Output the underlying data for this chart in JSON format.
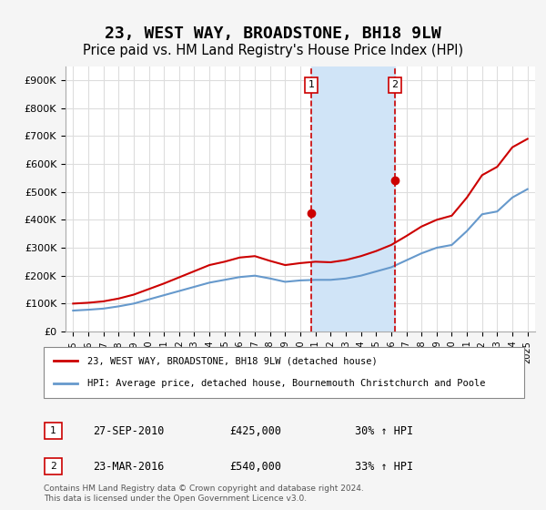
{
  "title": "23, WEST WAY, BROADSTONE, BH18 9LW",
  "subtitle": "Price paid vs. HM Land Registry's House Price Index (HPI)",
  "title_fontsize": 13,
  "subtitle_fontsize": 10.5,
  "ylim": [
    0,
    950000
  ],
  "yticks": [
    0,
    100000,
    200000,
    300000,
    400000,
    500000,
    600000,
    700000,
    800000,
    900000
  ],
  "ytick_labels": [
    "£0",
    "£100K",
    "£200K",
    "£300K",
    "£400K",
    "£500K",
    "£600K",
    "£700K",
    "£800K",
    "£900K"
  ],
  "xlim_start": 1994.5,
  "xlim_end": 2025.5,
  "xtick_years": [
    1995,
    1996,
    1997,
    1998,
    1999,
    2000,
    2001,
    2002,
    2003,
    2004,
    2005,
    2006,
    2007,
    2008,
    2009,
    2010,
    2011,
    2012,
    2013,
    2014,
    2015,
    2016,
    2017,
    2018,
    2019,
    2020,
    2021,
    2022,
    2023,
    2024,
    2025
  ],
  "purchase1_x": 2010.74,
  "purchase1_y": 425000,
  "purchase1_label": "1",
  "purchase2_x": 2016.23,
  "purchase2_y": 540000,
  "purchase2_label": "2",
  "shade_start": 2010.74,
  "shade_end": 2016.23,
  "shade_color": "#d0e4f7",
  "vline_color": "#cc0000",
  "vline_style": "--",
  "legend_line1_color": "#cc0000",
  "legend_line2_color": "#6699cc",
  "legend1_label": "23, WEST WAY, BROADSTONE, BH18 9LW (detached house)",
  "legend2_label": "HPI: Average price, detached house, Bournemouth Christchurch and Poole",
  "annotation1_date": "27-SEP-2010",
  "annotation1_price": "£425,000",
  "annotation1_hpi": "30% ↑ HPI",
  "annotation2_date": "23-MAR-2016",
  "annotation2_price": "£540,000",
  "annotation2_hpi": "33% ↑ HPI",
  "footer": "Contains HM Land Registry data © Crown copyright and database right 2024.\nThis data is licensed under the Open Government Licence v3.0.",
  "background_color": "#f5f5f5",
  "plot_bg_color": "#ffffff",
  "hpi_years": [
    1995,
    1996,
    1997,
    1998,
    1999,
    2000,
    2001,
    2002,
    2003,
    2004,
    2005,
    2006,
    2007,
    2008,
    2009,
    2010,
    2011,
    2012,
    2013,
    2014,
    2015,
    2016,
    2017,
    2018,
    2019,
    2020,
    2021,
    2022,
    2023,
    2024,
    2025
  ],
  "hpi_values": [
    75000,
    78000,
    82000,
    90000,
    100000,
    115000,
    130000,
    145000,
    160000,
    175000,
    185000,
    195000,
    200000,
    190000,
    178000,
    183000,
    185000,
    185000,
    190000,
    200000,
    215000,
    230000,
    255000,
    280000,
    300000,
    310000,
    360000,
    420000,
    430000,
    480000,
    510000
  ],
  "property_years": [
    1995,
    1996,
    1997,
    1998,
    1999,
    2000,
    2001,
    2002,
    2003,
    2004,
    2005,
    2006,
    2007,
    2008,
    2009,
    2010,
    2011,
    2012,
    2013,
    2014,
    2015,
    2016,
    2017,
    2018,
    2019,
    2020,
    2021,
    2022,
    2023,
    2024,
    2025
  ],
  "property_values": [
    100000,
    103000,
    108000,
    118000,
    132000,
    152000,
    172000,
    194000,
    216000,
    238000,
    250000,
    265000,
    270000,
    253000,
    238000,
    245000,
    250000,
    248000,
    256000,
    270000,
    288000,
    310000,
    342000,
    376000,
    400000,
    415000,
    480000,
    560000,
    590000,
    660000,
    690000
  ],
  "grid_color": "#dddddd"
}
